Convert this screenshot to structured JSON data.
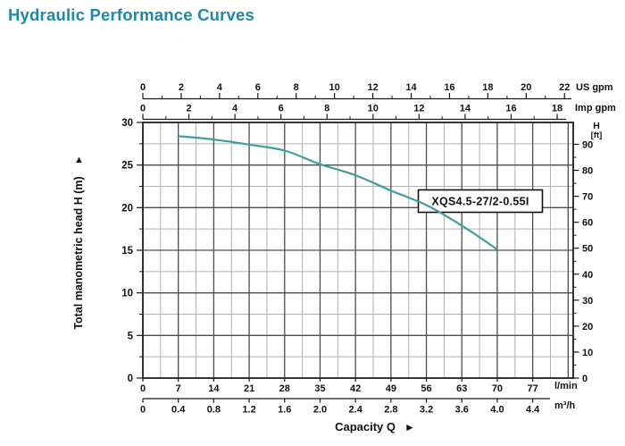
{
  "title": "Hydraulic Performance Curves",
  "curve_label": "XQS4.5-27/2-0.55I",
  "colors": {
    "title": "#1e87aa",
    "curve": "#3f9e9e",
    "grid_major": "#4d4d4d",
    "grid_minor": "#b0b0b0",
    "axis": "#1a1a1a",
    "border": "#333333"
  },
  "axes": {
    "us_gpm": {
      "unit": "US gpm",
      "ticks": [
        0,
        2,
        4,
        6,
        8,
        10,
        12,
        14,
        16,
        18,
        20,
        22
      ]
    },
    "imp_gpm": {
      "unit": "Imp gpm",
      "ticks": [
        0,
        2,
        4,
        6,
        8,
        10,
        12,
        14,
        16,
        18
      ]
    },
    "head_m": {
      "label": "Total manometric head H (m)",
      "arrow": "▲",
      "ticks": [
        30,
        25,
        20,
        15,
        10,
        5,
        0
      ]
    },
    "head_ft": {
      "label_line1": "H",
      "label_line2": "[ft]",
      "ticks": [
        90,
        80,
        70,
        60,
        50,
        40,
        30,
        20,
        10,
        0
      ]
    },
    "lmin": {
      "unit": "l/min",
      "ticks": [
        0,
        7,
        14,
        21,
        28,
        35,
        42,
        49,
        56,
        63,
        70,
        77
      ]
    },
    "m3h": {
      "unit": "m³/h",
      "ticks": [
        "0",
        "0.4",
        "0.8",
        "1.2",
        "1.6",
        "2.0",
        "2.4",
        "2.8",
        "3.2",
        "3.6",
        "4.0",
        "4.4"
      ]
    },
    "capacity": {
      "label": "Capacity Q",
      "arrow": "►"
    }
  },
  "chart_data": {
    "type": "line",
    "title": "Hydraulic Performance Curves",
    "xlabel": "Capacity Q",
    "ylabel": "Total manometric head H (m)",
    "x_axis_units": [
      "US gpm",
      "Imp gpm",
      "l/min",
      "m³/h"
    ],
    "y_axis_units": [
      "m",
      "ft"
    ],
    "x_range_lmin": [
      0,
      85
    ],
    "y_range_m": [
      0,
      30
    ],
    "grid": "on",
    "series": [
      {
        "name": "XQS4.5-27/2-0.55I",
        "x_lmin": [
          7,
          14,
          21,
          28,
          35,
          42,
          49,
          56,
          63,
          70
        ],
        "head_m": [
          28.4,
          28.0,
          27.4,
          26.7,
          25.1,
          23.8,
          22.0,
          20.3,
          17.9,
          15.1
        ]
      }
    ]
  }
}
